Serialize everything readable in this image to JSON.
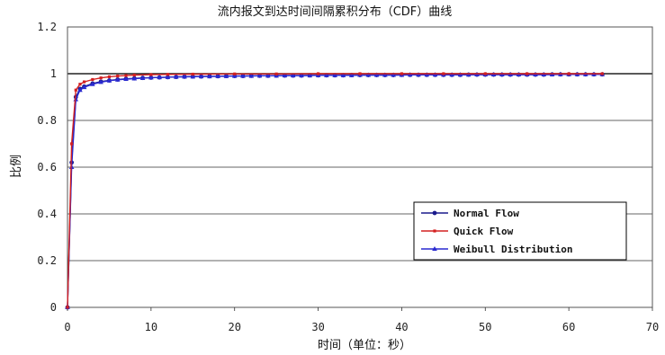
{
  "chart_data": {
    "type": "line",
    "title": "流内报文到达时间间隔累积分布（CDF）曲线",
    "xlabel": "时间（单位：秒）",
    "ylabel": "比例",
    "xlim": [
      0,
      70
    ],
    "ylim": [
      0,
      1.2
    ],
    "x_ticks": [
      "0",
      "10",
      "20",
      "30",
      "40",
      "50",
      "60",
      "70"
    ],
    "y_ticks": [
      "0",
      "0.2",
      "0.4",
      "0.6",
      "0.8",
      "1",
      "1.2"
    ],
    "grid": "horizontal",
    "legend_position": "bottom-right",
    "colors": {
      "normal": "#1a1a8c",
      "quick": "#d42020",
      "weibull": "#2a2ad0"
    },
    "series": [
      {
        "name": "Normal Flow",
        "x": [
          0,
          0.5,
          1,
          1.5,
          2,
          3,
          4,
          5,
          6,
          7,
          8,
          9,
          10,
          11,
          12,
          13,
          14,
          15,
          16,
          17,
          18,
          19,
          20,
          21,
          22,
          23,
          24,
          25,
          26,
          27,
          28,
          29,
          30,
          31,
          32,
          33,
          34,
          35,
          36,
          37,
          38,
          39,
          40,
          41,
          42,
          43,
          44,
          45,
          46,
          47,
          48,
          49,
          50,
          51,
          52,
          53,
          54,
          55,
          56,
          57,
          58,
          59,
          60,
          61,
          62,
          63,
          64
        ],
        "y": [
          0,
          0.62,
          0.9,
          0.935,
          0.945,
          0.958,
          0.966,
          0.971,
          0.975,
          0.978,
          0.98,
          0.982,
          0.983,
          0.984,
          0.985,
          0.986,
          0.987,
          0.988,
          0.988,
          0.989,
          0.989,
          0.99,
          0.99,
          0.99,
          0.991,
          0.991,
          0.991,
          0.992,
          0.992,
          0.992,
          0.992,
          0.993,
          0.993,
          0.993,
          0.993,
          0.993,
          0.994,
          0.994,
          0.994,
          0.994,
          0.994,
          0.994,
          0.995,
          0.995,
          0.995,
          0.995,
          0.995,
          0.995,
          0.995,
          0.995,
          0.996,
          0.996,
          0.996,
          0.996,
          0.996,
          0.996,
          0.996,
          0.996,
          0.996,
          0.996,
          0.997,
          0.997,
          0.997,
          0.997,
          0.997,
          0.997,
          0.997
        ]
      },
      {
        "name": "Quick Flow",
        "x": [
          0,
          0.5,
          1,
          1.5,
          2,
          3,
          4,
          5,
          6,
          7,
          8,
          10,
          12,
          15,
          20,
          25,
          30,
          35,
          40,
          45,
          50,
          55,
          60,
          64
        ],
        "y": [
          0,
          0.7,
          0.93,
          0.955,
          0.965,
          0.975,
          0.982,
          0.987,
          0.99,
          0.992,
          0.994,
          0.996,
          0.997,
          0.998,
          0.999,
          0.999,
          1.0,
          1.0,
          1.0,
          1.0,
          1.0,
          1.0,
          1.0,
          1.0
        ]
      },
      {
        "name": "Weibull Distribution",
        "x": [
          0,
          0.5,
          1,
          1.5,
          2,
          3,
          4,
          5,
          6,
          7,
          8,
          9,
          10,
          11,
          12,
          13,
          14,
          15,
          16,
          17,
          18,
          19,
          20,
          21,
          22,
          23,
          24,
          25,
          26,
          27,
          28,
          29,
          30,
          31,
          32,
          33,
          34,
          35,
          36,
          37,
          38,
          39,
          40,
          41,
          42,
          43,
          44,
          45,
          46,
          47,
          48,
          49,
          50,
          51,
          52,
          53,
          54,
          55,
          56,
          57,
          58,
          59,
          60,
          61,
          62,
          63,
          64
        ],
        "y": [
          0,
          0.6,
          0.89,
          0.93,
          0.942,
          0.955,
          0.964,
          0.97,
          0.974,
          0.977,
          0.979,
          0.981,
          0.983,
          0.984,
          0.985,
          0.986,
          0.987,
          0.987,
          0.988,
          0.988,
          0.989,
          0.989,
          0.99,
          0.99,
          0.99,
          0.991,
          0.991,
          0.991,
          0.992,
          0.992,
          0.992,
          0.992,
          0.993,
          0.993,
          0.993,
          0.993,
          0.993,
          0.994,
          0.994,
          0.994,
          0.994,
          0.994,
          0.994,
          0.995,
          0.995,
          0.995,
          0.995,
          0.995,
          0.995,
          0.995,
          0.995,
          0.996,
          0.996,
          0.996,
          0.996,
          0.996,
          0.996,
          0.996,
          0.996,
          0.996,
          0.996,
          0.997,
          0.997,
          0.997,
          0.997,
          0.997,
          0.997
        ]
      }
    ]
  }
}
